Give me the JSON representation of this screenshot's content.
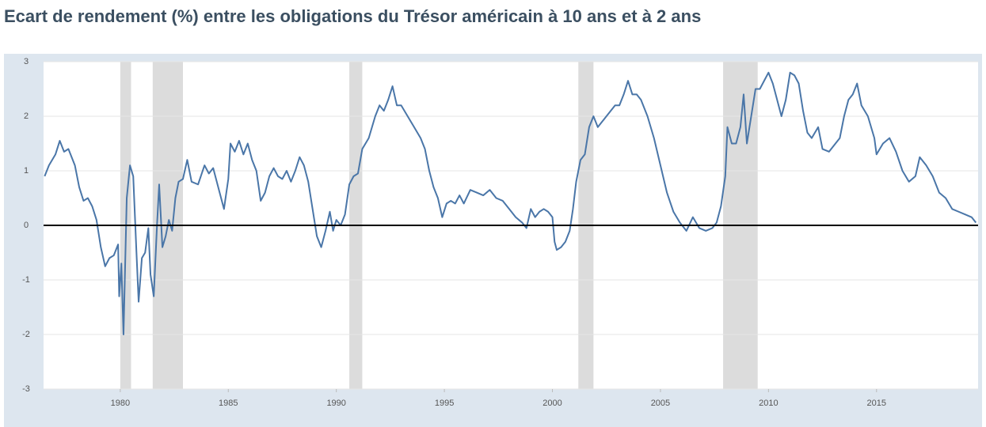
{
  "chart_data": {
    "type": "line",
    "title": "Ecart de rendement  (%) entre les obligations du Trésor américain à 10 ans et à 2 ans",
    "x": [
      1976.5,
      1976.7,
      1977.0,
      1977.2,
      1977.4,
      1977.6,
      1977.9,
      1978.1,
      1978.3,
      1978.5,
      1978.7,
      1978.9,
      1979.1,
      1979.3,
      1979.5,
      1979.7,
      1979.9,
      1979.95,
      1980.05,
      1980.15,
      1980.3,
      1980.45,
      1980.6,
      1980.75,
      1980.85,
      1981.0,
      1981.15,
      1981.3,
      1981.4,
      1981.55,
      1981.7,
      1981.8,
      1981.95,
      1982.1,
      1982.25,
      1982.4,
      1982.55,
      1982.7,
      1982.9,
      1983.1,
      1983.3,
      1983.6,
      1983.9,
      1984.1,
      1984.3,
      1984.6,
      1984.8,
      1985.0,
      1985.1,
      1985.3,
      1985.5,
      1985.7,
      1985.9,
      1986.1,
      1986.3,
      1986.5,
      1986.7,
      1986.9,
      1987.1,
      1987.3,
      1987.5,
      1987.7,
      1987.9,
      1988.1,
      1988.3,
      1988.5,
      1988.7,
      1988.9,
      1989.1,
      1989.3,
      1989.5,
      1989.7,
      1989.85,
      1990.0,
      1990.2,
      1990.4,
      1990.6,
      1990.8,
      1991.0,
      1991.2,
      1991.5,
      1991.8,
      1992.0,
      1992.2,
      1992.4,
      1992.6,
      1992.8,
      1993.0,
      1993.3,
      1993.6,
      1993.9,
      1994.1,
      1994.3,
      1994.5,
      1994.7,
      1994.9,
      1995.1,
      1995.3,
      1995.5,
      1995.7,
      1995.9,
      1996.2,
      1996.5,
      1996.8,
      1997.1,
      1997.4,
      1997.7,
      1998.0,
      1998.3,
      1998.6,
      1998.8,
      1999.0,
      1999.2,
      1999.4,
      1999.6,
      1999.8,
      2000.0,
      2000.1,
      2000.2,
      2000.4,
      2000.6,
      2000.8,
      2000.95,
      2001.1,
      2001.3,
      2001.5,
      2001.7,
      2001.9,
      2002.1,
      2002.3,
      2002.5,
      2002.7,
      2002.9,
      2003.1,
      2003.3,
      2003.5,
      2003.7,
      2003.9,
      2004.1,
      2004.4,
      2004.7,
      2005.0,
      2005.3,
      2005.6,
      2005.9,
      2006.2,
      2006.5,
      2006.8,
      2007.1,
      2007.4,
      2007.6,
      2007.8,
      2008.0,
      2008.1,
      2008.3,
      2008.5,
      2008.7,
      2008.85,
      2009.0,
      2009.2,
      2009.4,
      2009.6,
      2009.8,
      2010.0,
      2010.2,
      2010.4,
      2010.6,
      2010.8,
      2011.0,
      2011.2,
      2011.4,
      2011.6,
      2011.8,
      2012.0,
      2012.3,
      2012.5,
      2012.8,
      2013.1,
      2013.3,
      2013.5,
      2013.7,
      2013.9,
      2014.1,
      2014.3,
      2014.6,
      2014.9,
      2015.0,
      2015.3,
      2015.6,
      2015.9,
      2016.2,
      2016.5,
      2016.8,
      2017.0,
      2017.3,
      2017.6,
      2017.9,
      2018.2,
      2018.5,
      2018.8,
      2019.1,
      2019.4,
      2019.6
    ],
    "series": [
      {
        "color": "#4a76a8",
        "values": [
          0.9,
          1.1,
          1.3,
          1.55,
          1.35,
          1.4,
          1.1,
          0.7,
          0.45,
          0.5,
          0.35,
          0.1,
          -0.4,
          -0.75,
          -0.6,
          -0.55,
          -0.35,
          -1.3,
          -0.7,
          -2.0,
          0.5,
          1.1,
          0.9,
          -0.5,
          -1.4,
          -0.6,
          -0.5,
          -0.05,
          -0.9,
          -1.3,
          0.0,
          0.75,
          -0.4,
          -0.2,
          0.1,
          -0.1,
          0.5,
          0.8,
          0.85,
          1.2,
          0.8,
          0.75,
          1.1,
          0.95,
          1.05,
          0.6,
          0.3,
          0.85,
          1.5,
          1.35,
          1.55,
          1.3,
          1.5,
          1.2,
          1.0,
          0.45,
          0.6,
          0.9,
          1.05,
          0.9,
          0.85,
          1.0,
          0.8,
          1.0,
          1.25,
          1.1,
          0.8,
          0.3,
          -0.2,
          -0.4,
          -0.1,
          0.25,
          -0.1,
          0.1,
          0.0,
          0.2,
          0.75,
          0.9,
          0.95,
          1.4,
          1.6,
          2.0,
          2.2,
          2.1,
          2.3,
          2.55,
          2.2,
          2.2,
          2.0,
          1.8,
          1.6,
          1.4,
          1.0,
          0.7,
          0.5,
          0.15,
          0.4,
          0.45,
          0.4,
          0.55,
          0.4,
          0.65,
          0.6,
          0.55,
          0.65,
          0.5,
          0.45,
          0.3,
          0.15,
          0.05,
          -0.05,
          0.3,
          0.15,
          0.25,
          0.3,
          0.25,
          0.15,
          -0.3,
          -0.45,
          -0.4,
          -0.3,
          -0.1,
          0.3,
          0.8,
          1.2,
          1.3,
          1.8,
          2.0,
          1.8,
          1.9,
          2.0,
          2.1,
          2.2,
          2.2,
          2.4,
          2.65,
          2.4,
          2.4,
          2.3,
          2.0,
          1.6,
          1.1,
          0.6,
          0.25,
          0.05,
          -0.1,
          0.15,
          -0.05,
          -0.1,
          -0.05,
          0.05,
          0.35,
          0.9,
          1.8,
          1.5,
          1.5,
          1.8,
          2.4,
          1.5,
          2.0,
          2.5,
          2.5,
          2.65,
          2.8,
          2.6,
          2.3,
          2.0,
          2.3,
          2.8,
          2.75,
          2.6,
          2.1,
          1.7,
          1.6,
          1.8,
          1.4,
          1.35,
          1.5,
          1.6,
          2.0,
          2.3,
          2.4,
          2.6,
          2.2,
          2.0,
          1.6,
          1.3,
          1.5,
          1.6,
          1.35,
          1.0,
          0.8,
          0.9,
          1.25,
          1.1,
          0.9,
          0.6,
          0.5,
          0.3,
          0.25,
          0.2,
          0.15,
          0.05
        ]
      }
    ],
    "recessions": [
      [
        1980.0,
        1980.5
      ],
      [
        1981.5,
        1982.9
      ],
      [
        1990.6,
        1991.2
      ],
      [
        2001.2,
        2001.9
      ],
      [
        2007.9,
        2009.5
      ]
    ],
    "recession_color": "#dcdcdc",
    "xlim": [
      1976.45,
      2019.7
    ],
    "xticks": [
      1980,
      1985,
      1990,
      1995,
      2000,
      2005,
      2010,
      2015
    ],
    "ylim": [
      -3,
      3
    ],
    "yticks": [
      -3,
      -2,
      -1,
      0,
      1,
      2,
      3
    ],
    "grid": true
  }
}
